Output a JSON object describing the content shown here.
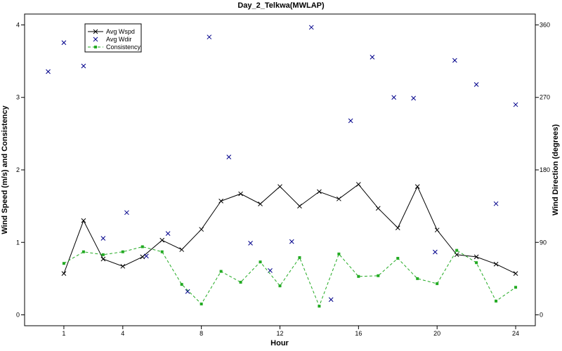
{
  "chart_data": {
    "type": "line",
    "title": "Day_2_Telkwa(MWLAP)",
    "xlabel": "Hour",
    "ylabel_left": "Wind Speed (m/s) and Consistency",
    "ylabel_right": "Wind Direction (degrees)",
    "xlim": [
      -1,
      25
    ],
    "ylim_left": [
      -0.15,
      4.15
    ],
    "ylim_right": [
      -13.5,
      373.5
    ],
    "x_ticks": [
      1,
      4,
      8,
      12,
      16,
      20,
      24
    ],
    "y_ticks_left": [
      0,
      1,
      2,
      3,
      4
    ],
    "y_ticks_right": [
      0,
      90,
      180,
      270,
      360
    ],
    "legend_position": "top-left",
    "series": [
      {
        "name": "Avg Wspd",
        "color": "#000000",
        "marker": "x",
        "line": "solid",
        "axis": "left",
        "x": [
          1,
          2,
          3,
          4,
          5,
          6,
          7,
          8,
          9,
          10,
          11,
          12,
          13,
          14,
          15,
          16,
          17,
          18,
          19,
          20,
          21,
          22,
          23,
          24
        ],
        "values": [
          0.57,
          1.3,
          0.77,
          0.67,
          0.8,
          1.03,
          0.9,
          1.18,
          1.57,
          1.67,
          1.53,
          1.77,
          1.5,
          1.7,
          1.6,
          1.8,
          1.47,
          1.2,
          1.77,
          1.17,
          0.83,
          0.8,
          0.7,
          0.57
        ]
      },
      {
        "name": "Avg Wdir",
        "color": "#00008B",
        "marker": "x",
        "line": "none",
        "axis": "right",
        "x": [
          0.2,
          1,
          2,
          3,
          4.2,
          5.2,
          6.3,
          7.3,
          8.4,
          9.4,
          10.5,
          11.5,
          12.6,
          13.6,
          14.6,
          15.6,
          16.7,
          17.8,
          18.8,
          19.9,
          20.9,
          22,
          23,
          24
        ],
        "values": [
          302,
          338,
          309,
          95,
          127,
          73,
          101,
          29,
          345,
          196,
          89,
          55,
          91,
          357,
          19,
          241,
          320,
          270,
          269,
          78,
          316,
          286,
          138,
          261
        ]
      },
      {
        "name": "Consistency",
        "color": "#22AA22",
        "marker": "square",
        "line": "dashed",
        "axis": "left",
        "x": [
          1,
          2,
          3,
          4,
          5,
          6,
          7,
          8,
          9,
          10,
          11,
          12,
          13,
          14,
          15,
          16,
          17,
          18,
          19,
          20,
          21,
          22,
          23,
          24
        ],
        "values": [
          0.71,
          0.87,
          0.83,
          0.87,
          0.94,
          0.87,
          0.42,
          0.15,
          0.6,
          0.45,
          0.73,
          0.4,
          0.79,
          0.12,
          0.84,
          0.53,
          0.54,
          0.78,
          0.5,
          0.43,
          0.89,
          0.72,
          0.19,
          0.38
        ]
      }
    ]
  }
}
